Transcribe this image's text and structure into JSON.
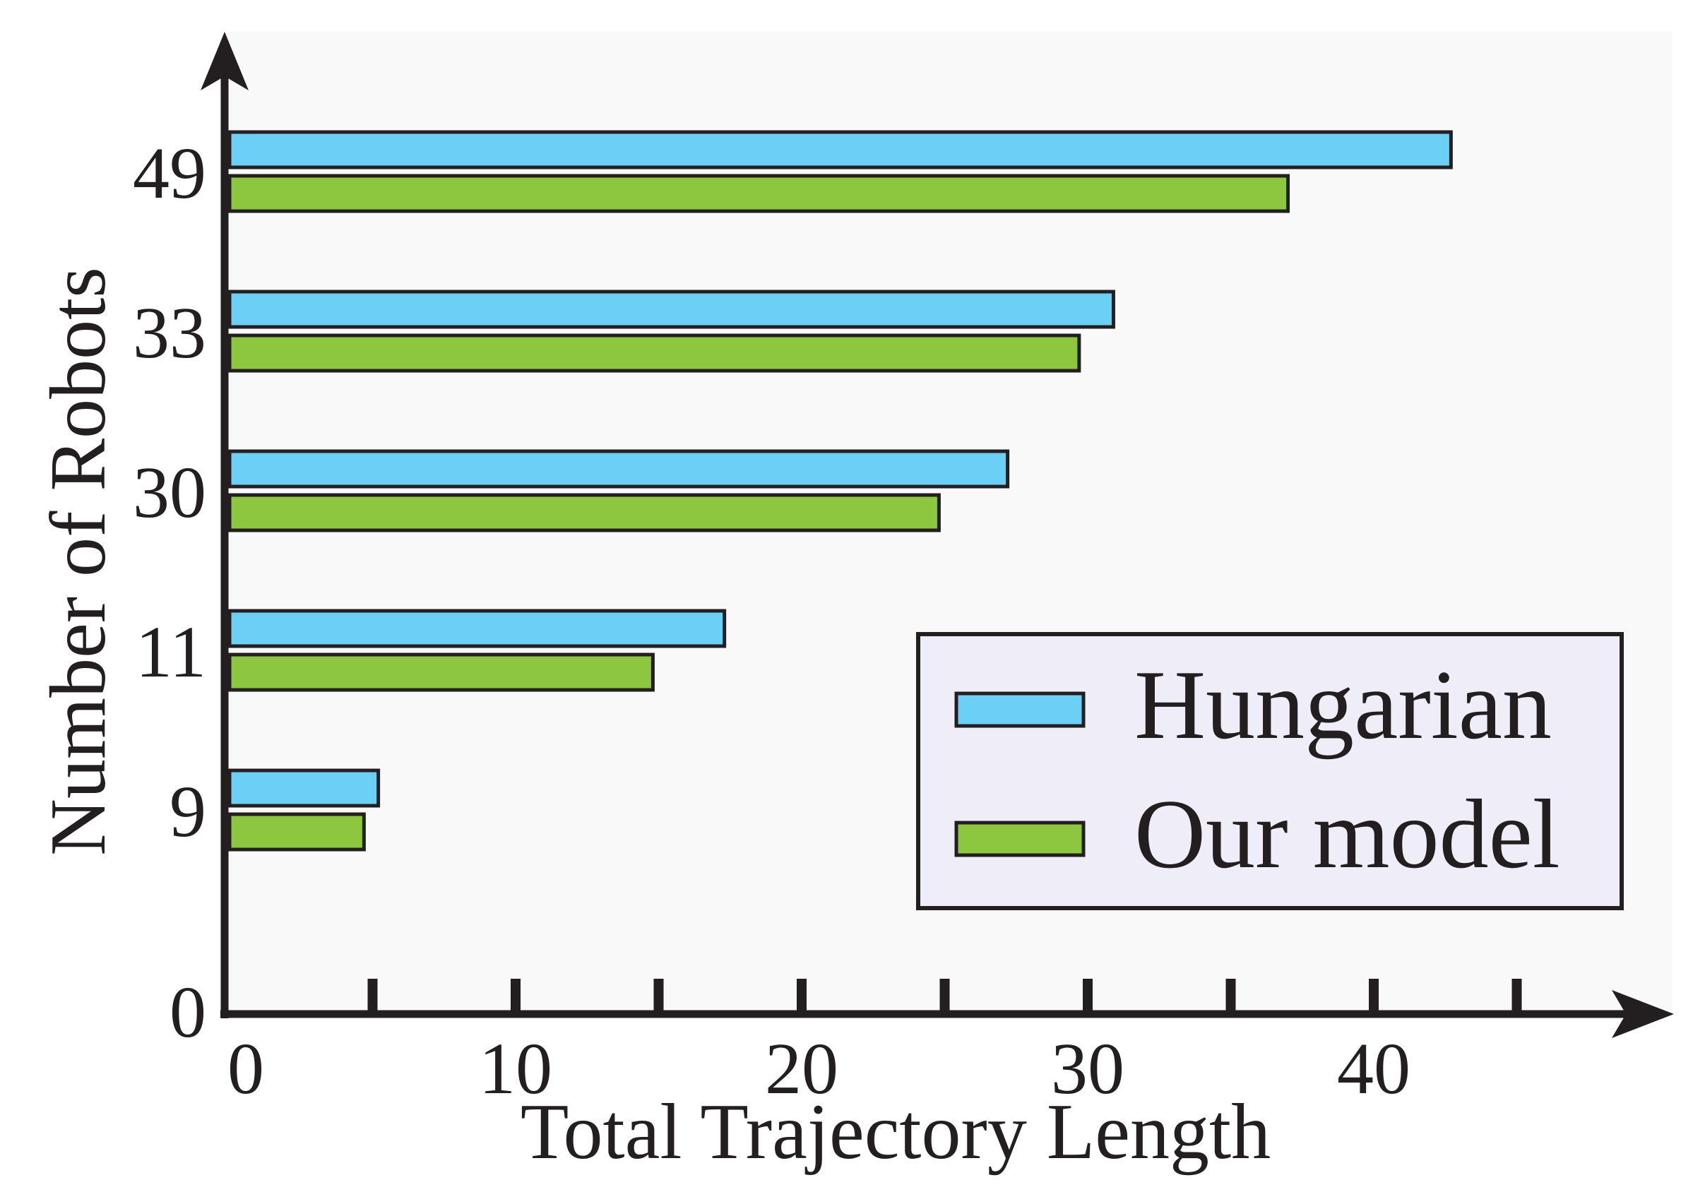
{
  "chart_data": {
    "type": "bar",
    "orientation": "horizontal",
    "title": "",
    "xlabel": "Total Trajectory Length",
    "ylabel": "Number of Robots",
    "categories": [
      "9",
      "11",
      "30",
      "33",
      "49"
    ],
    "y_origin_label": "0",
    "series": [
      {
        "name": "Hungarian",
        "color": "#6ccff6",
        "values": [
          5.2,
          17.3,
          27.2,
          30.9,
          42.7
        ]
      },
      {
        "name": "Our model",
        "color": "#8dc63f",
        "values": [
          4.7,
          14.8,
          24.8,
          29.7,
          37.0
        ]
      }
    ],
    "xticks": [
      0,
      10,
      20,
      30,
      40
    ],
    "xlim": [
      0,
      50
    ],
    "grid": false,
    "legend_position": "bottom-right",
    "colors": {
      "plot_background": "#f9f9f9",
      "legend_background": "#efeef8",
      "axis": "#231f20"
    }
  }
}
